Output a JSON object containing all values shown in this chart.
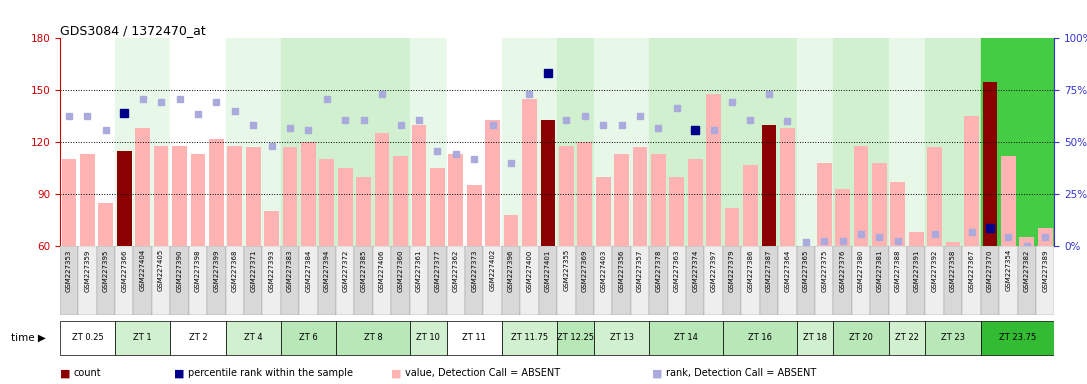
{
  "title": "GDS3084 / 1372470_at",
  "gsm_labels": [
    "GSM227353",
    "GSM227359",
    "GSM227395",
    "GSM227366",
    "GSM227404",
    "GSM227405",
    "GSM227390",
    "GSM227398",
    "GSM227399",
    "GSM227368",
    "GSM227371",
    "GSM227393",
    "GSM227383",
    "GSM227384",
    "GSM227394",
    "GSM227372",
    "GSM227385",
    "GSM227406",
    "GSM227360",
    "GSM227361",
    "GSM227377",
    "GSM227362",
    "GSM227373",
    "GSM227402",
    "GSM227396",
    "GSM227400",
    "GSM227401",
    "GSM227355",
    "GSM227369",
    "GSM227403",
    "GSM227356",
    "GSM227357",
    "GSM227378",
    "GSM227363",
    "GSM227374",
    "GSM227397",
    "GSM227379",
    "GSM227386",
    "GSM227387",
    "GSM227364",
    "GSM227365",
    "GSM227375",
    "GSM227376",
    "GSM227380",
    "GSM227381",
    "GSM227388",
    "GSM227391",
    "GSM227392",
    "GSM227358",
    "GSM227367",
    "GSM227370",
    "GSM227354",
    "GSM227382",
    "GSM227389"
  ],
  "time_groups": [
    {
      "label": "ZT 0.25",
      "start": 0,
      "end": 3,
      "plot_color": "#ffffff",
      "label_color": "#ffffff"
    },
    {
      "label": "ZT 1",
      "start": 3,
      "end": 6,
      "plot_color": "#e8f8e8",
      "label_color": "#d0f0d0"
    },
    {
      "label": "ZT 2",
      "start": 6,
      "end": 9,
      "plot_color": "#ffffff",
      "label_color": "#ffffff"
    },
    {
      "label": "ZT 4",
      "start": 9,
      "end": 12,
      "plot_color": "#e8f8e8",
      "label_color": "#d0f0d0"
    },
    {
      "label": "ZT 6",
      "start": 12,
      "end": 15,
      "plot_color": "#d0f0d0",
      "label_color": "#b8e8b8"
    },
    {
      "label": "ZT 8",
      "start": 15,
      "end": 19,
      "plot_color": "#d0f0d0",
      "label_color": "#b8e8b8"
    },
    {
      "label": "ZT 10",
      "start": 19,
      "end": 21,
      "plot_color": "#e8f8e8",
      "label_color": "#d0f0d0"
    },
    {
      "label": "ZT 11",
      "start": 21,
      "end": 24,
      "plot_color": "#ffffff",
      "label_color": "#ffffff"
    },
    {
      "label": "ZT 11.75",
      "start": 24,
      "end": 27,
      "plot_color": "#e8f8e8",
      "label_color": "#d0f0d0"
    },
    {
      "label": "ZT 12.25",
      "start": 27,
      "end": 29,
      "plot_color": "#d0f0d0",
      "label_color": "#b8e8b8"
    },
    {
      "label": "ZT 13",
      "start": 29,
      "end": 32,
      "plot_color": "#e8f8e8",
      "label_color": "#d0f0d0"
    },
    {
      "label": "ZT 14",
      "start": 32,
      "end": 36,
      "plot_color": "#d0f0d0",
      "label_color": "#b8e8b8"
    },
    {
      "label": "ZT 16",
      "start": 36,
      "end": 40,
      "plot_color": "#d0f0d0",
      "label_color": "#b8e8b8"
    },
    {
      "label": "ZT 18",
      "start": 40,
      "end": 42,
      "plot_color": "#e8f8e8",
      "label_color": "#d0f0d0"
    },
    {
      "label": "ZT 20",
      "start": 42,
      "end": 45,
      "plot_color": "#d0f0d0",
      "label_color": "#b8e8b8"
    },
    {
      "label": "ZT 22",
      "start": 45,
      "end": 47,
      "plot_color": "#e8f8e8",
      "label_color": "#d0f0d0"
    },
    {
      "label": "ZT 23",
      "start": 47,
      "end": 50,
      "plot_color": "#d0f0d0",
      "label_color": "#b8e8b8"
    },
    {
      "label": "ZT 23.75",
      "start": 50,
      "end": 54,
      "plot_color": "#44cc44",
      "label_color": "#33bb33"
    }
  ],
  "bar_values": [
    110,
    113,
    85,
    115,
    128,
    118,
    118,
    113,
    122,
    118,
    117,
    80,
    117,
    120,
    110,
    105,
    100,
    125,
    112,
    130,
    105,
    113,
    95,
    133,
    78,
    145,
    133,
    118,
    120,
    100,
    113,
    117,
    113,
    100,
    110,
    148,
    82,
    107,
    130,
    128,
    47,
    108,
    93,
    118,
    108,
    97,
    68,
    117,
    62,
    135,
    155,
    112,
    65,
    70
  ],
  "is_dark_red": [
    false,
    false,
    false,
    true,
    false,
    false,
    false,
    false,
    false,
    false,
    false,
    false,
    false,
    false,
    false,
    false,
    false,
    false,
    false,
    false,
    false,
    false,
    false,
    false,
    false,
    false,
    true,
    false,
    false,
    false,
    false,
    false,
    false,
    false,
    false,
    false,
    false,
    false,
    true,
    false,
    false,
    false,
    false,
    false,
    false,
    false,
    false,
    false,
    false,
    false,
    true,
    false,
    false,
    false
  ],
  "rank_values_left_scale": [
    135,
    135,
    127,
    137,
    145,
    143,
    145,
    136,
    143,
    138,
    130,
    118,
    128,
    127,
    145,
    133,
    133,
    148,
    130,
    133,
    115,
    113,
    110,
    130,
    108,
    148,
    160,
    133,
    135,
    130,
    130,
    135,
    128,
    140,
    127,
    127,
    143,
    133,
    148,
    132,
    62,
    63,
    63,
    67,
    65,
    63,
    55,
    67,
    55,
    68,
    70,
    65,
    60,
    65
  ],
  "is_rank_dark_blue": [
    false,
    false,
    false,
    true,
    false,
    false,
    false,
    false,
    false,
    false,
    false,
    false,
    false,
    false,
    false,
    false,
    false,
    false,
    false,
    false,
    false,
    false,
    false,
    false,
    false,
    false,
    true,
    false,
    false,
    false,
    false,
    false,
    false,
    false,
    true,
    false,
    false,
    false,
    false,
    false,
    false,
    false,
    false,
    false,
    false,
    false,
    false,
    false,
    false,
    false,
    true,
    false,
    false,
    false
  ],
  "ylim_left": [
    60,
    180
  ],
  "ylim_right": [
    0,
    100
  ],
  "yticks_left": [
    60,
    90,
    120,
    150,
    180
  ],
  "yticks_right": [
    0,
    25,
    50,
    75,
    100
  ],
  "color_dark_red": "#8b0000",
  "color_pink": "#ffb3b3",
  "color_dark_blue": "#00008b",
  "color_light_blue": "#aaaadd",
  "color_axis_left": "#cc0000",
  "color_axis_right": "#3333cc",
  "legend_items": [
    {
      "label": "count",
      "color": "#8b0000"
    },
    {
      "label": "percentile rank within the sample",
      "color": "#00008b"
    },
    {
      "label": "value, Detection Call = ABSENT",
      "color": "#ffb3b3"
    },
    {
      "label": "rank, Detection Call = ABSENT",
      "color": "#aaaadd"
    }
  ]
}
